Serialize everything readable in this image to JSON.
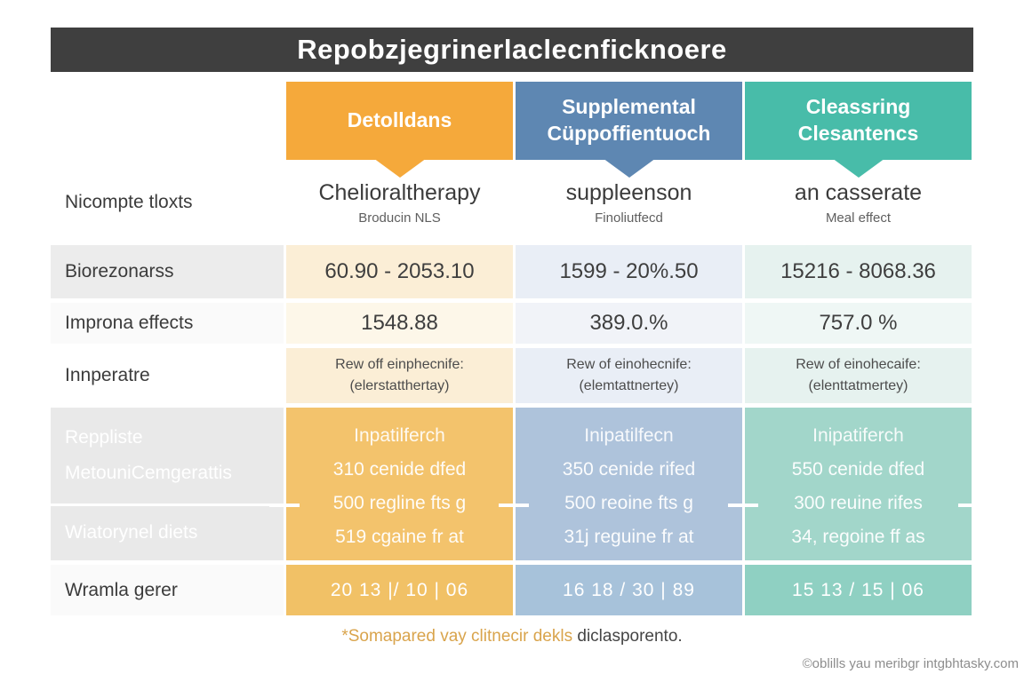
{
  "header": {
    "title": "Repobzjegrinerlaclecnficknoere"
  },
  "colors": {
    "title_bar": "#3f3f3f",
    "orange": "#f5a93b",
    "blue": "#5e87b2",
    "teal": "#48bca9",
    "orange_mid": "#f3c36c",
    "blue_mid": "#aec3db",
    "teal_mid": "#a2d6ca",
    "orange_tint": "#fbeed6",
    "blue_tint": "#e9eef6",
    "teal_tint": "#e6f2ef",
    "footnote_gold": "#d9a44c",
    "label_gray": "#ececec"
  },
  "columns": [
    {
      "lines": [
        "Detolldans"
      ]
    },
    {
      "lines": [
        "Supplemental",
        "Cüppoffientuoch"
      ]
    },
    {
      "lines": [
        "Cleassring",
        "Clesantencs"
      ]
    }
  ],
  "rows": {
    "therapy": {
      "label": "Nicompte tloxts",
      "cells": [
        {
          "main": "Chelioraltherapy",
          "sub": "Broducin NLS"
        },
        {
          "main": "suppleenson",
          "sub": "Finoliutfecd"
        },
        {
          "main": "an casserate",
          "sub": "Meal effect"
        }
      ]
    },
    "range": {
      "label": "Biorezonarss",
      "cells": [
        "60.90 - 2053.10",
        "1599 - 20%.50",
        "15216 - 8068.36"
      ]
    },
    "effects": {
      "label": "Improna effects",
      "cells": [
        "1548.88",
        "389.0.%",
        "757.0 %"
      ]
    },
    "rate": {
      "label": "Innperatre",
      "cells": [
        {
          "line1": "Rew off einphecnife:",
          "line2": "(elerstatthertay)"
        },
        {
          "line1": "Rew of einohecnife:",
          "line2": "(elemtattnertey)"
        },
        {
          "line1": "Rew of einohecaife:",
          "line2": "(elenttatmertey)"
        }
      ]
    },
    "program": {
      "labels": [
        "Reppliste",
        "MetouniCemgerattis",
        "Wiatorynel diets"
      ],
      "cells": [
        {
          "heading": "Inpatilferch",
          "lines": [
            "310 cenide dfed",
            "500 regline fts g",
            "519 cgaine fr at"
          ]
        },
        {
          "heading": "Inipatilfecn",
          "lines": [
            "350 cenide rifed",
            "500 reoine fts g",
            "31j reguine fr at"
          ]
        },
        {
          "heading": "Inipatiferch",
          "lines": [
            "550 cenide dfed",
            "300 reuine rifes",
            "34, regoine ff as"
          ]
        }
      ]
    },
    "totals": {
      "label": "Wramla gerer",
      "cells": [
        "20 13 |/ 10 | 06",
        "16 18 / 30 | 89",
        "15 13 / 15 | 06"
      ]
    }
  },
  "footnote": {
    "highlight": "*Somapared vay clitnecir dekls",
    "rest": " diclasporento."
  },
  "watermark": "©oblills yau meribgr intgbhtasky.com",
  "chart_data": {
    "type": "table",
    "title": "Repobzjegrinerlaclecnficknoere",
    "columns": [
      "",
      "Detolldans",
      "Supplemental Cüppoffientuoch",
      "Cleassring Clesantencs"
    ],
    "rows": [
      [
        "Nicompte tloxts",
        "Chelioraltherapy — Broducin NLS",
        "suppleenson — Finoliutfecd",
        "an casserate — Meal effect"
      ],
      [
        "Biorezonarss",
        "60.90 - 2053.10",
        "1599 - 20%.50",
        "15216 - 8068.36"
      ],
      [
        "Improna effects",
        "1548.88",
        "389.0.%",
        "757.0 %"
      ],
      [
        "Innperatre",
        "Rew off einphecnife: (elerstatthertay)",
        "Rew of einohecnife: (elemtattnertey)",
        "Rew of einohecaife: (elenttatmertey)"
      ],
      [
        "Reppliste MetouniCemgerattis / Wiatorynel diets",
        "Inpatilferch: 310 cenide dfed; 500 regline fts g; 519 cgaine fr at",
        "Inipatilfecn: 350 cenide rifed; 500 reoine fts g; 31j reguine fr at",
        "Inipatiferch: 550 cenide dfed; 300 reuine rifes; 34, regoine ff as"
      ],
      [
        "Wramla gerer",
        "20 13 |/ 10 | 06",
        "16 18 / 30 | 89",
        "15 13 / 15 | 06"
      ]
    ]
  }
}
